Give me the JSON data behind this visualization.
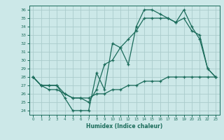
{
  "xlabel": "Humidex (Indice chaleur)",
  "bg_color": "#cce8e8",
  "grid_color": "#aacccc",
  "line_color": "#1a6b5a",
  "xlim": [
    -0.5,
    23.5
  ],
  "ylim": [
    23.5,
    36.5
  ],
  "yticks": [
    24,
    25,
    26,
    27,
    28,
    29,
    30,
    31,
    32,
    33,
    34,
    35,
    36
  ],
  "xticks": [
    0,
    1,
    2,
    3,
    4,
    5,
    6,
    7,
    8,
    9,
    10,
    11,
    12,
    13,
    14,
    15,
    16,
    17,
    18,
    19,
    20,
    21,
    22,
    23
  ],
  "line1_x": [
    0,
    1,
    2,
    3,
    4,
    5,
    6,
    7,
    8,
    9,
    10,
    11,
    12,
    13,
    14,
    15,
    16,
    17,
    18,
    19,
    20,
    21,
    22,
    23
  ],
  "line1_y": [
    28,
    27,
    27,
    27,
    25.5,
    24,
    24,
    24,
    28.5,
    26.5,
    32,
    31.5,
    29.5,
    34,
    36,
    36,
    35.5,
    35,
    34.5,
    36,
    34,
    32.5,
    29,
    28
  ],
  "line2_x": [
    0,
    1,
    2,
    3,
    4,
    5,
    6,
    7,
    8,
    9,
    10,
    11,
    12,
    13,
    14,
    15,
    16,
    17,
    18,
    19,
    20,
    21,
    22,
    23
  ],
  "line2_y": [
    28,
    27,
    27,
    27,
    26,
    25.5,
    25.5,
    25,
    26.5,
    29.5,
    30,
    31.5,
    32.5,
    33.5,
    35,
    35,
    35,
    35,
    34.5,
    35,
    33.5,
    33,
    29,
    28
  ],
  "line3_x": [
    0,
    1,
    2,
    3,
    4,
    5,
    6,
    7,
    8,
    9,
    10,
    11,
    12,
    13,
    14,
    15,
    16,
    17,
    18,
    19,
    20,
    21,
    22,
    23
  ],
  "line3_y": [
    28,
    27,
    26.5,
    26.5,
    26,
    25.5,
    25.5,
    25.5,
    26,
    26,
    26.5,
    26.5,
    27,
    27,
    27.5,
    27.5,
    27.5,
    28,
    28,
    28,
    28,
    28,
    28,
    28
  ]
}
